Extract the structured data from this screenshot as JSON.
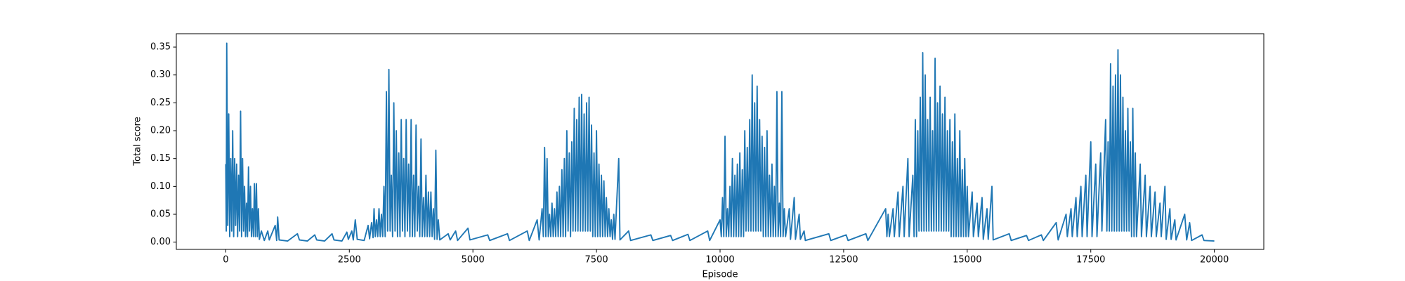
{
  "chart_data": {
    "type": "line",
    "xlabel": "Episode",
    "ylabel": "Total score",
    "x": [
      0,
      10,
      20,
      40,
      60,
      80,
      100,
      120,
      140,
      160,
      180,
      200,
      220,
      240,
      260,
      280,
      300,
      320,
      340,
      360,
      380,
      400,
      420,
      440,
      460,
      480,
      500,
      520,
      540,
      560,
      580,
      600,
      620,
      640,
      660,
      680,
      720,
      780,
      850,
      880,
      1000,
      1030,
      1050,
      1080,
      1250,
      1450,
      1490,
      1650,
      1800,
      1840,
      2000,
      2150,
      2190,
      2350,
      2450,
      2480,
      2550,
      2580,
      2620,
      2660,
      2800,
      2880,
      2910,
      2950,
      2980,
      3000,
      3025,
      3050,
      3075,
      3100,
      3125,
      3150,
      3175,
      3200,
      3225,
      3250,
      3275,
      3300,
      3325,
      3350,
      3375,
      3400,
      3425,
      3450,
      3475,
      3500,
      3525,
      3550,
      3575,
      3600,
      3625,
      3650,
      3675,
      3700,
      3725,
      3750,
      3775,
      3800,
      3825,
      3850,
      3875,
      3900,
      3925,
      3950,
      3975,
      4000,
      4025,
      4050,
      4075,
      4100,
      4125,
      4150,
      4175,
      4200,
      4225,
      4250,
      4275,
      4300,
      4330,
      4500,
      4540,
      4650,
      4690,
      4900,
      4940,
      5300,
      5340,
      5700,
      5740,
      6100,
      6140,
      6300,
      6340,
      6400,
      6425,
      6450,
      6475,
      6500,
      6525,
      6550,
      6575,
      6600,
      6625,
      6650,
      6675,
      6700,
      6725,
      6750,
      6775,
      6800,
      6825,
      6850,
      6875,
      6900,
      6925,
      6950,
      6975,
      7000,
      7025,
      7050,
      7075,
      7100,
      7125,
      7150,
      7175,
      7200,
      7225,
      7250,
      7275,
      7300,
      7325,
      7350,
      7375,
      7400,
      7425,
      7450,
      7475,
      7500,
      7525,
      7550,
      7575,
      7600,
      7625,
      7650,
      7675,
      7700,
      7725,
      7750,
      7775,
      7800,
      7825,
      7850,
      7875,
      7950,
      7975,
      8150,
      8190,
      8600,
      8640,
      9000,
      9040,
      9350,
      9390,
      9750,
      9790,
      10000,
      10025,
      10050,
      10075,
      10100,
      10125,
      10150,
      10175,
      10200,
      10225,
      10250,
      10275,
      10300,
      10325,
      10350,
      10375,
      10400,
      10425,
      10450,
      10475,
      10500,
      10525,
      10550,
      10575,
      10600,
      10625,
      10650,
      10675,
      10700,
      10725,
      10750,
      10775,
      10800,
      10825,
      10850,
      10875,
      10900,
      10925,
      10950,
      10975,
      11000,
      11025,
      11050,
      11075,
      11100,
      11125,
      11150,
      11175,
      11200,
      11225,
      11250,
      11275,
      11300,
      11325,
      11400,
      11425,
      11500,
      11525,
      11600,
      11625,
      11700,
      11725,
      12200,
      12240,
      12550,
      12590,
      12950,
      12990,
      13350,
      13375,
      13400,
      13425,
      13500,
      13525,
      13600,
      13625,
      13700,
      13725,
      13800,
      13825,
      13900,
      13925,
      13950,
      13975,
      14000,
      14025,
      14050,
      14075,
      14100,
      14125,
      14150,
      14175,
      14200,
      14225,
      14250,
      14275,
      14300,
      14325,
      14350,
      14375,
      14400,
      14425,
      14450,
      14475,
      14500,
      14525,
      14550,
      14575,
      14600,
      14625,
      14650,
      14675,
      14700,
      14725,
      14750,
      14775,
      14800,
      14825,
      14850,
      14875,
      14900,
      14925,
      14950,
      14975,
      15000,
      15025,
      15100,
      15125,
      15200,
      15225,
      15300,
      15325,
      15400,
      15425,
      15500,
      15525,
      15850,
      15890,
      16200,
      16240,
      16500,
      16540,
      16800,
      16840,
      17000,
      17025,
      17100,
      17125,
      17200,
      17225,
      17300,
      17325,
      17400,
      17425,
      17500,
      17525,
      17600,
      17625,
      17700,
      17725,
      17800,
      17825,
      17850,
      17875,
      17900,
      17925,
      17950,
      17975,
      18000,
      18025,
      18050,
      18075,
      18100,
      18125,
      18150,
      18175,
      18200,
      18225,
      18250,
      18275,
      18300,
      18325,
      18350,
      18375,
      18400,
      18425,
      18500,
      18525,
      18600,
      18625,
      18700,
      18725,
      18800,
      18825,
      18900,
      18925,
      19000,
      19025,
      19100,
      19125,
      19200,
      19225,
      19400,
      19440,
      19500,
      19540,
      19750,
      19790,
      19999
    ],
    "series": [
      {
        "name": "Total score",
        "color": "#1f77b4",
        "values": [
          0.14,
          0.02,
          0.357,
          0.03,
          0.23,
          0.01,
          0.15,
          0.02,
          0.2,
          0.01,
          0.15,
          0.03,
          0.14,
          0.01,
          0.12,
          0.02,
          0.235,
          0.01,
          0.15,
          0.02,
          0.1,
          0.01,
          0.07,
          0.01,
          0.135,
          0.02,
          0.1,
          0.01,
          0.06,
          0.01,
          0.105,
          0.01,
          0.105,
          0.01,
          0.06,
          0.005,
          0.02,
          0.003,
          0.02,
          0.004,
          0.03,
          0.003,
          0.045,
          0.004,
          0.002,
          0.015,
          0.004,
          0.002,
          0.013,
          0.004,
          0.002,
          0.015,
          0.004,
          0.002,
          0.018,
          0.005,
          0.02,
          0.004,
          0.04,
          0.005,
          0.003,
          0.03,
          0.006,
          0.035,
          0.008,
          0.06,
          0.01,
          0.04,
          0.01,
          0.06,
          0.01,
          0.05,
          0.01,
          0.1,
          0.01,
          0.27,
          0.02,
          0.31,
          0.02,
          0.12,
          0.01,
          0.25,
          0.02,
          0.2,
          0.01,
          0.16,
          0.01,
          0.22,
          0.02,
          0.15,
          0.01,
          0.22,
          0.02,
          0.14,
          0.01,
          0.22,
          0.01,
          0.12,
          0.01,
          0.21,
          0.02,
          0.1,
          0.01,
          0.185,
          0.01,
          0.08,
          0.01,
          0.12,
          0.01,
          0.09,
          0.01,
          0.09,
          0.01,
          0.06,
          0.005,
          0.165,
          0.005,
          0.04,
          0.004,
          0.015,
          0.004,
          0.02,
          0.003,
          0.025,
          0.004,
          0.013,
          0.003,
          0.015,
          0.003,
          0.02,
          0.003,
          0.04,
          0.004,
          0.06,
          0.01,
          0.17,
          0.01,
          0.15,
          0.01,
          0.05,
          0.01,
          0.07,
          0.01,
          0.06,
          0.01,
          0.09,
          0.01,
          0.1,
          0.01,
          0.13,
          0.01,
          0.15,
          0.01,
          0.2,
          0.02,
          0.16,
          0.01,
          0.18,
          0.02,
          0.24,
          0.02,
          0.22,
          0.02,
          0.26,
          0.02,
          0.265,
          0.02,
          0.23,
          0.02,
          0.25,
          0.02,
          0.26,
          0.02,
          0.21,
          0.01,
          0.16,
          0.01,
          0.2,
          0.01,
          0.14,
          0.01,
          0.12,
          0.01,
          0.11,
          0.01,
          0.08,
          0.01,
          0.06,
          0.01,
          0.04,
          0.005,
          0.05,
          0.005,
          0.15,
          0.004,
          0.02,
          0.003,
          0.013,
          0.003,
          0.012,
          0.003,
          0.014,
          0.003,
          0.02,
          0.003,
          0.04,
          0.01,
          0.08,
          0.01,
          0.19,
          0.01,
          0.06,
          0.01,
          0.1,
          0.01,
          0.15,
          0.01,
          0.12,
          0.01,
          0.14,
          0.01,
          0.16,
          0.01,
          0.13,
          0.01,
          0.2,
          0.02,
          0.17,
          0.02,
          0.22,
          0.02,
          0.3,
          0.02,
          0.25,
          0.02,
          0.28,
          0.02,
          0.22,
          0.02,
          0.19,
          0.01,
          0.17,
          0.01,
          0.2,
          0.01,
          0.12,
          0.01,
          0.14,
          0.01,
          0.1,
          0.01,
          0.27,
          0.01,
          0.07,
          0.01,
          0.27,
          0.01,
          0.06,
          0.01,
          0.06,
          0.005,
          0.08,
          0.005,
          0.05,
          0.005,
          0.02,
          0.003,
          0.015,
          0.003,
          0.013,
          0.003,
          0.015,
          0.003,
          0.06,
          0.01,
          0.05,
          0.01,
          0.06,
          0.01,
          0.09,
          0.01,
          0.1,
          0.01,
          0.15,
          0.01,
          0.12,
          0.01,
          0.22,
          0.01,
          0.2,
          0.02,
          0.26,
          0.02,
          0.34,
          0.02,
          0.3,
          0.02,
          0.22,
          0.02,
          0.26,
          0.02,
          0.2,
          0.02,
          0.33,
          0.02,
          0.25,
          0.02,
          0.28,
          0.02,
          0.23,
          0.02,
          0.26,
          0.02,
          0.2,
          0.02,
          0.22,
          0.01,
          0.18,
          0.01,
          0.23,
          0.01,
          0.15,
          0.01,
          0.2,
          0.01,
          0.13,
          0.01,
          0.15,
          0.01,
          0.1,
          0.01,
          0.09,
          0.01,
          0.07,
          0.01,
          0.08,
          0.005,
          0.06,
          0.005,
          0.1,
          0.004,
          0.015,
          0.003,
          0.012,
          0.003,
          0.013,
          0.003,
          0.035,
          0.004,
          0.05,
          0.01,
          0.06,
          0.01,
          0.08,
          0.01,
          0.1,
          0.01,
          0.12,
          0.01,
          0.18,
          0.01,
          0.14,
          0.01,
          0.16,
          0.02,
          0.22,
          0.02,
          0.18,
          0.02,
          0.32,
          0.02,
          0.28,
          0.02,
          0.3,
          0.02,
          0.345,
          0.02,
          0.3,
          0.02,
          0.26,
          0.02,
          0.2,
          0.02,
          0.24,
          0.02,
          0.18,
          0.01,
          0.24,
          0.01,
          0.16,
          0.01,
          0.14,
          0.01,
          0.12,
          0.01,
          0.1,
          0.01,
          0.09,
          0.01,
          0.07,
          0.01,
          0.1,
          0.005,
          0.06,
          0.005,
          0.04,
          0.004,
          0.05,
          0.004,
          0.035,
          0.003,
          0.013,
          0.003,
          0.002
        ]
      }
    ],
    "xlim": [
      -1000,
      21000
    ],
    "xticks": [
      0,
      2500,
      5000,
      7500,
      10000,
      12500,
      15000,
      17500,
      20000
    ],
    "ylim": [
      -0.013,
      0.374
    ],
    "yticks": [
      {
        "value": 0,
        "label": "0.00"
      },
      {
        "value": 0.05,
        "label": "0.05"
      },
      {
        "value": 0.1,
        "label": "0.10"
      },
      {
        "value": 0.15,
        "label": "0.15"
      },
      {
        "value": 0.2,
        "label": "0.20"
      },
      {
        "value": 0.25,
        "label": "0.25"
      },
      {
        "value": 0.3,
        "label": "0.30"
      },
      {
        "value": 0.35,
        "label": "0.35"
      }
    ]
  }
}
